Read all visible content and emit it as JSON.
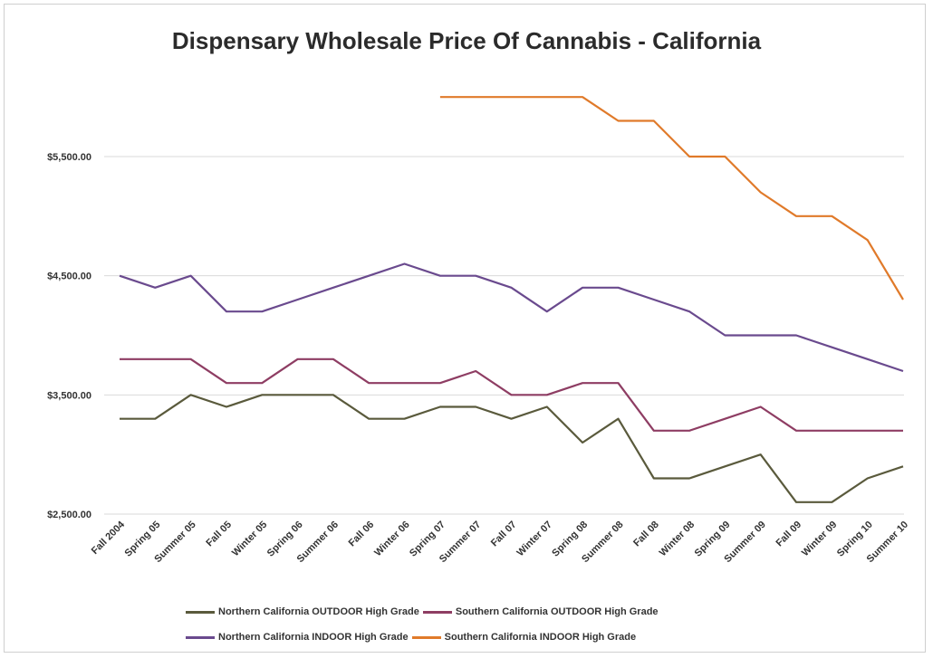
{
  "chart_data": {
    "type": "line",
    "title": "Dispensary Wholesale Price Of Cannabis - California",
    "categories": [
      "Fall 2004",
      "Spring 05",
      "Summer 05",
      "Fall 05",
      "Winter 05",
      "Spring 06",
      "Summer 06",
      "Fall 06",
      "Winter 06",
      "Spring 07",
      "Summer 07",
      "Fall 07",
      "Winter 07",
      "Spring 08",
      "Summer 08",
      "Fall 08",
      "Winter 08",
      "Spring 09",
      "Summer 09",
      "Fall 09",
      "Winter 09",
      "Spring 10",
      "Summer 10"
    ],
    "ylim": [
      2500,
      6000
    ],
    "yticks": [
      2500,
      3500,
      4500,
      5500
    ],
    "ytick_labels": [
      "$2,500.00",
      "$3,500.00",
      "$4,500.00",
      "$5,500.00"
    ],
    "grid": true,
    "legend_position": "bottom",
    "series": [
      {
        "name": "Northern California OUTDOOR High Grade",
        "color": "#5a5a3c",
        "values": [
          3300,
          3300,
          3500,
          3400,
          3500,
          3500,
          3500,
          3300,
          3300,
          3400,
          3400,
          3300,
          3400,
          3100,
          3300,
          2800,
          2800,
          2900,
          3000,
          2600,
          2600,
          2800,
          2900
        ]
      },
      {
        "name": "Southern California OUTDOOR High Grade",
        "color": "#8e3d63",
        "values": [
          3800,
          3800,
          3800,
          3600,
          3600,
          3800,
          3800,
          3600,
          3600,
          3600,
          3700,
          3500,
          3500,
          3600,
          3600,
          3200,
          3200,
          3300,
          3400,
          3200,
          3200,
          3200,
          3200
        ]
      },
      {
        "name": "Northern California INDOOR High Grade",
        "color": "#6a4a8e",
        "values": [
          4500,
          4400,
          4500,
          4200,
          4200,
          4300,
          4400,
          4500,
          4600,
          4500,
          4500,
          4400,
          4200,
          4400,
          4400,
          4300,
          4200,
          4000,
          4000,
          4000,
          3900,
          3800,
          3700
        ]
      },
      {
        "name": "Southern California INDOOR High Grade",
        "color": "#e07a2a",
        "values": [
          null,
          null,
          null,
          null,
          null,
          null,
          null,
          null,
          null,
          6000,
          6000,
          6000,
          6000,
          6000,
          5800,
          5800,
          5500,
          5500,
          5200,
          5000,
          5000,
          4800,
          4300
        ]
      }
    ]
  }
}
